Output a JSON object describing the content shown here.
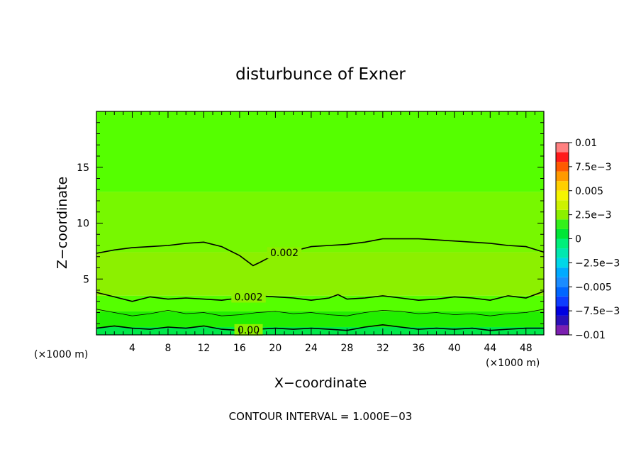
{
  "chart_data": {
    "type": "heatmap",
    "title": "disturbunce of Exner",
    "xlabel": "X−coordinate",
    "ylabel": "Z−coordinate",
    "x_unit_left": "(×1000 m)",
    "x_unit_right": "(×1000 m)",
    "xlim": [
      0,
      50
    ],
    "ylim": [
      0,
      20
    ],
    "xticks": [
      {
        "value": 4,
        "label": "4"
      },
      {
        "value": 8,
        "label": "8"
      },
      {
        "value": 12,
        "label": "12"
      },
      {
        "value": 16,
        "label": "16"
      },
      {
        "value": 20,
        "label": "20"
      },
      {
        "value": 24,
        "label": "24"
      },
      {
        "value": 28,
        "label": "28"
      },
      {
        "value": 32,
        "label": "32"
      },
      {
        "value": 36,
        "label": "36"
      },
      {
        "value": 40,
        "label": "40"
      },
      {
        "value": 44,
        "label": "44"
      },
      {
        "value": 48,
        "label": "48"
      }
    ],
    "yticks": [
      {
        "value": 5,
        "label": "5"
      },
      {
        "value": 10,
        "label": "10"
      },
      {
        "value": 15,
        "label": "15"
      }
    ],
    "colorbar": {
      "range": [
        -0.01,
        0.01
      ],
      "ticks": [
        {
          "value": 0.01,
          "label": "0.01"
        },
        {
          "value": 0.0075,
          "label": "7.5e−3"
        },
        {
          "value": 0.005,
          "label": "0.005"
        },
        {
          "value": 0.0025,
          "label": "2.5e−3"
        },
        {
          "value": 0,
          "label": "0"
        },
        {
          "value": -0.0025,
          "label": "−2.5e−3"
        },
        {
          "value": -0.005,
          "label": "−0.005"
        },
        {
          "value": -0.0075,
          "label": "−7.5e−3"
        },
        {
          "value": -0.01,
          "label": "−0.01"
        }
      ],
      "levels": [
        {
          "from": -0.01,
          "to": -0.009,
          "color": "#7b1fb0"
        },
        {
          "from": -0.009,
          "to": -0.008,
          "color": "#2a10b8"
        },
        {
          "from": -0.008,
          "to": -0.007,
          "color": "#0000e0"
        },
        {
          "from": -0.007,
          "to": -0.006,
          "color": "#0d3cff"
        },
        {
          "from": -0.006,
          "to": -0.005,
          "color": "#0066ff"
        },
        {
          "from": -0.005,
          "to": -0.004,
          "color": "#1a8cff"
        },
        {
          "from": -0.004,
          "to": -0.003,
          "color": "#00aaff"
        },
        {
          "from": -0.003,
          "to": -0.002,
          "color": "#00d7e8"
        },
        {
          "from": -0.002,
          "to": -0.001,
          "color": "#00e8b0"
        },
        {
          "from": -0.001,
          "to": 0,
          "color": "#00f07a"
        },
        {
          "from": 0,
          "to": 0.001,
          "color": "#00e636"
        },
        {
          "from": 0.001,
          "to": 0.002,
          "color": "#33f01a"
        },
        {
          "from": 0.002,
          "to": 0.003,
          "color": "#8cf000"
        },
        {
          "from": 0.003,
          "to": 0.004,
          "color": "#cdf200"
        },
        {
          "from": 0.004,
          "to": 0.005,
          "color": "#f5f500"
        },
        {
          "from": 0.005,
          "to": 0.006,
          "color": "#ffd000"
        },
        {
          "from": 0.006,
          "to": 0.007,
          "color": "#ff9a00"
        },
        {
          "from": 0.007,
          "to": 0.008,
          "color": "#ff5a00"
        },
        {
          "from": 0.008,
          "to": 0.009,
          "color": "#ff1a1a"
        },
        {
          "from": 0.009,
          "to": 0.01,
          "color": "#ff8080"
        }
      ]
    },
    "field_bands": [
      {
        "from": 12.8,
        "to": 20,
        "color": "#55ff00",
        "value": "0.001 to 0.002"
      },
      {
        "from": 7.4,
        "to": 12.8,
        "color": "#77f800",
        "value": "0.002 to 0.003"
      },
      {
        "from": 3.5,
        "to": 7.4,
        "color": "#8cf000",
        "value": "0.002 to 0.003"
      },
      {
        "from": 2.1,
        "to": 3.5,
        "color": "#55ff00",
        "value": "0.001 to 0.002"
      },
      {
        "from": 0.7,
        "to": 2.1,
        "color": "#22ee00",
        "value": "0 to 0.001"
      },
      {
        "from": 0,
        "to": 0.7,
        "color": "#00e84a",
        "value": "-0.001 to 0"
      }
    ],
    "contours": [
      {
        "value": 0.002,
        "label": "0.002",
        "label_at_x": 21,
        "x": [
          0,
          2,
          4,
          6,
          8,
          10,
          12,
          14,
          16,
          17.5,
          18.3,
          19,
          20,
          22,
          24,
          26,
          28,
          30,
          32,
          34,
          36,
          38,
          40,
          42,
          44,
          46,
          48,
          50
        ],
        "y": [
          7.3,
          7.6,
          7.8,
          7.9,
          8.0,
          8.2,
          8.3,
          7.9,
          7.1,
          6.2,
          6.5,
          6.8,
          7.2,
          7.5,
          7.9,
          8.0,
          8.1,
          8.3,
          8.6,
          8.6,
          8.6,
          8.5,
          8.4,
          8.3,
          8.2,
          8.0,
          7.9,
          7.4
        ]
      },
      {
        "value": 0.002,
        "label": "0.002",
        "label_at_x": 17,
        "x": [
          0,
          2,
          4,
          6,
          8,
          10,
          12,
          14,
          16,
          18,
          20,
          22,
          24,
          26,
          27,
          28,
          30,
          32,
          34,
          36,
          38,
          40,
          42,
          44,
          46,
          48,
          50
        ],
        "y": [
          3.8,
          3.4,
          3.0,
          3.4,
          3.2,
          3.3,
          3.2,
          3.1,
          3.3,
          3.5,
          3.4,
          3.3,
          3.1,
          3.3,
          3.6,
          3.2,
          3.3,
          3.5,
          3.3,
          3.1,
          3.2,
          3.4,
          3.3,
          3.1,
          3.5,
          3.3,
          3.9
        ]
      },
      {
        "value": 0.001,
        "label": "",
        "label_at_x": null,
        "x": [
          0,
          2,
          4,
          6,
          8,
          10,
          12,
          14,
          16,
          18,
          20,
          22,
          24,
          26,
          28,
          30,
          32,
          34,
          36,
          38,
          40,
          42,
          44,
          46,
          48,
          50
        ],
        "y": [
          2.3,
          2.0,
          1.7,
          1.9,
          2.2,
          1.9,
          2.0,
          1.7,
          1.8,
          2.0,
          2.1,
          1.9,
          2.0,
          1.8,
          1.7,
          2.0,
          2.2,
          2.1,
          1.9,
          2.0,
          1.8,
          1.9,
          1.7,
          1.9,
          2.0,
          2.3
        ]
      },
      {
        "value": 0.0,
        "label": "0.00",
        "label_at_x": 17,
        "x": [
          0,
          2,
          4,
          6,
          8,
          10,
          12,
          14,
          16,
          18,
          20,
          22,
          24,
          26,
          28,
          30,
          32,
          34,
          36,
          38,
          40,
          42,
          44,
          46,
          48,
          50
        ],
        "y": [
          0.6,
          0.8,
          0.6,
          0.5,
          0.7,
          0.6,
          0.8,
          0.5,
          0.4,
          0.5,
          0.6,
          0.5,
          0.6,
          0.5,
          0.4,
          0.7,
          0.9,
          0.7,
          0.5,
          0.6,
          0.5,
          0.6,
          0.4,
          0.5,
          0.6,
          0.6
        ]
      }
    ],
    "footnote": "CONTOUR INTERVAL = 1.000E−03"
  }
}
